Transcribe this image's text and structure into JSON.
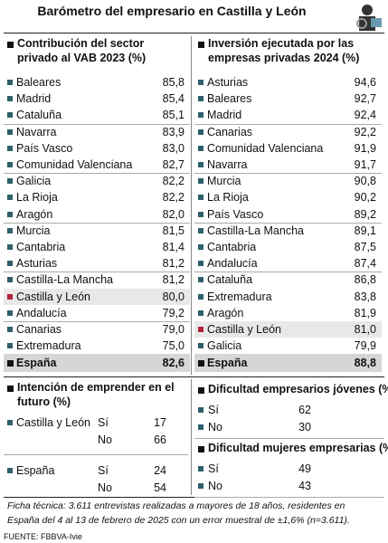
{
  "title": "Barómetro del empresario en Castilla y León",
  "left_table": {
    "heading": "Contribución del sector privado al VAB 2023 (%)",
    "rows": [
      [
        "Baleares",
        "85,8"
      ],
      [
        "Madrid",
        "85,4"
      ],
      [
        "Cataluña",
        "85,1"
      ],
      [
        "Navarra",
        "83,9"
      ],
      [
        "País Vasco",
        "83,0"
      ],
      [
        "Comunidad Valenciana",
        "82,7"
      ],
      [
        "Galicia",
        "82,2"
      ],
      [
        "La Rioja",
        "82,2"
      ],
      [
        "Aragón",
        "82,0"
      ],
      [
        "Murcia",
        "81,5"
      ],
      [
        "Cantabria",
        "81,4"
      ],
      [
        "Asturias",
        "81,2"
      ],
      [
        "Castilla-La Mancha",
        "81,2"
      ],
      [
        "Castilla y León",
        "80,0"
      ],
      [
        "Andalucía",
        "79,2"
      ],
      [
        "Canarias",
        "79,0"
      ],
      [
        "Extremadura",
        "75,0"
      ]
    ],
    "total": [
      "España",
      "82,6"
    ]
  },
  "right_table": {
    "heading": "Inversión ejecutada por las empresas privadas 2024 (%)",
    "rows": [
      [
        "Asturias",
        "94,6"
      ],
      [
        "Baleares",
        "92,7"
      ],
      [
        "Madrid",
        "92,4"
      ],
      [
        "Canarias",
        "92,2"
      ],
      [
        "Comunidad Valenciana",
        "91,9"
      ],
      [
        "Navarra",
        "91,7"
      ],
      [
        "Murcia",
        "90,8"
      ],
      [
        "La Rioja",
        "90,2"
      ],
      [
        "País Vasco",
        "89,2"
      ],
      [
        "Castilla-La Mancha",
        "89,1"
      ],
      [
        "Cantabria",
        "87,5"
      ],
      [
        "Andalucía",
        "87,4"
      ],
      [
        "Cataluña",
        "86,8"
      ],
      [
        "Extremadura",
        "83,8"
      ],
      [
        "Aragón",
        "81,9"
      ],
      [
        "Castilla y León",
        "81,0"
      ],
      [
        "Galicia",
        "79,9"
      ]
    ],
    "total": [
      "España",
      "88,8"
    ]
  },
  "entrepreneurship": {
    "heading": "Intención de emprender en el futuro (%)",
    "groups": [
      {
        "region": "Castilla y León",
        "rows": [
          [
            "Sí",
            "17"
          ],
          [
            "No",
            "66"
          ]
        ]
      },
      {
        "region": "España",
        "rows": [
          [
            "Sí",
            "24"
          ],
          [
            "No",
            "54"
          ]
        ]
      }
    ]
  },
  "young": {
    "heading": "Dificultad empresarios jóvenes (%)",
    "rows": [
      [
        "Sí",
        "62"
      ],
      [
        "No",
        "30"
      ]
    ]
  },
  "women": {
    "heading": "Dificultad mujeres empresarias (%)",
    "rows": [
      [
        "Sí",
        "49"
      ],
      [
        "No",
        "43"
      ]
    ]
  },
  "footnote": "Ficha técnica: 3.611 entrevistas realizadas a mayores de 18 años, residentes en España del 4 al 13 de febrero de 2025 con un error muestral de ±1,6% (n=3.611).",
  "source": "FUENTE: FBBVA-Ivie"
}
